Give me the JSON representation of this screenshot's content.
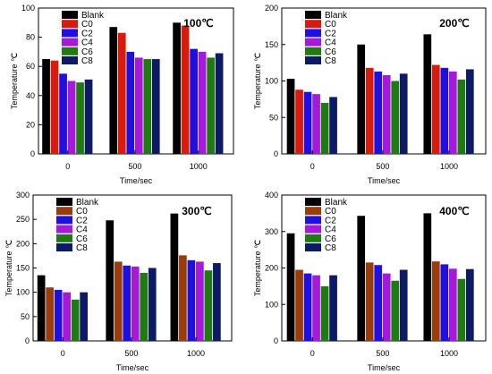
{
  "legend": [
    "Blank",
    "C0",
    "C2",
    "C4",
    "C6",
    "C8"
  ],
  "colors": {
    "Blank": "#000000",
    "C0": "#d81b0a",
    "C2": "#1f10e0",
    "C4": "#a51ad8",
    "C6": "#1f7a12",
    "C8": "#0d1a66"
  },
  "colors_alt": {
    "C0": "#9a3d0a"
  },
  "chart_data": [
    {
      "type": "bar",
      "title": "100℃",
      "xlabel": "Time/sec",
      "ylabel": "Temperature ℃",
      "categories": [
        "0",
        "500",
        "1000"
      ],
      "ylim": [
        0,
        100
      ],
      "yticks": [
        0,
        20,
        40,
        60,
        80,
        100
      ],
      "legend_position": "top-left",
      "series": [
        {
          "name": "Blank",
          "values": [
            65,
            87,
            90
          ]
        },
        {
          "name": "C0",
          "values": [
            64,
            83,
            88
          ]
        },
        {
          "name": "C2",
          "values": [
            55,
            70,
            72
          ]
        },
        {
          "name": "C4",
          "values": [
            50,
            66,
            70
          ]
        },
        {
          "name": "C6",
          "values": [
            49,
            65,
            66
          ]
        },
        {
          "name": "C8",
          "values": [
            51,
            65,
            69
          ]
        }
      ]
    },
    {
      "type": "bar",
      "title": "200℃",
      "xlabel": "Time/sec",
      "ylabel": "Temperature ℃",
      "categories": [
        "0",
        "500",
        "1000"
      ],
      "ylim": [
        0,
        200
      ],
      "yticks": [
        0,
        50,
        100,
        150,
        200
      ],
      "legend_position": "top-left",
      "series": [
        {
          "name": "Blank",
          "values": [
            103,
            150,
            164
          ]
        },
        {
          "name": "C0",
          "values": [
            88,
            118,
            122
          ]
        },
        {
          "name": "C2",
          "values": [
            85,
            113,
            118
          ]
        },
        {
          "name": "C4",
          "values": [
            82,
            108,
            113
          ]
        },
        {
          "name": "C6",
          "values": [
            70,
            100,
            102
          ]
        },
        {
          "name": "C8",
          "values": [
            78,
            110,
            116
          ]
        }
      ]
    },
    {
      "type": "bar",
      "title": "300℃",
      "xlabel": "Time/sec",
      "ylabel": "Temperature ℃",
      "categories": [
        "0",
        "500",
        "1000"
      ],
      "ylim": [
        0,
        300
      ],
      "yticks": [
        0,
        50,
        100,
        150,
        200,
        250,
        300
      ],
      "legend_position": "top-left",
      "series": [
        {
          "name": "Blank",
          "values": [
            135,
            248,
            262
          ]
        },
        {
          "name": "C0",
          "values": [
            110,
            163,
            176
          ]
        },
        {
          "name": "C2",
          "values": [
            105,
            155,
            166
          ]
        },
        {
          "name": "C4",
          "values": [
            100,
            153,
            163
          ]
        },
        {
          "name": "C6",
          "values": [
            85,
            140,
            145
          ]
        },
        {
          "name": "C8",
          "values": [
            100,
            150,
            160
          ]
        }
      ]
    },
    {
      "type": "bar",
      "title": "400℃",
      "xlabel": "Time/sec",
      "ylabel": "Temperature ℃",
      "categories": [
        "0",
        "500",
        "1000"
      ],
      "ylim": [
        0,
        400
      ],
      "yticks": [
        0,
        100,
        200,
        300,
        400
      ],
      "legend_position": "top-left",
      "series": [
        {
          "name": "Blank",
          "values": [
            295,
            343,
            350
          ]
        },
        {
          "name": "C0",
          "values": [
            195,
            215,
            218
          ]
        },
        {
          "name": "C2",
          "values": [
            185,
            208,
            210
          ]
        },
        {
          "name": "C4",
          "values": [
            180,
            185,
            198
          ]
        },
        {
          "name": "C6",
          "values": [
            150,
            165,
            170
          ]
        },
        {
          "name": "C8",
          "values": [
            180,
            195,
            197
          ]
        }
      ]
    }
  ]
}
